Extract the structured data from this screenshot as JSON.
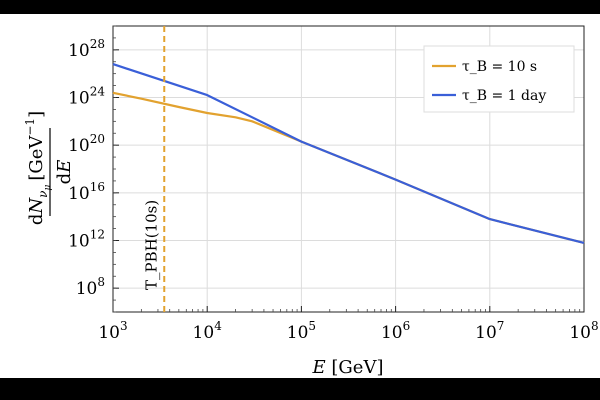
{
  "chart_data": {
    "type": "line",
    "title": "",
    "xlabel": "E [GeV]",
    "ylabel": "dN_{ν_μ}/dE [GeV^{-1}]",
    "xscale": "log",
    "yscale": "log",
    "xlim": [
      1000,
      100000000
    ],
    "ylim": [
      1000000,
      1e+30
    ],
    "xticks": [
      "10^3",
      "10^4",
      "10^5",
      "10^6",
      "10^7",
      "10^8"
    ],
    "yticks": [
      "10^8",
      "10^12",
      "10^16",
      "10^20",
      "10^24",
      "10^28"
    ],
    "grid": true,
    "legend_position": "top-right",
    "series": [
      {
        "name": "τ_B = 10 s",
        "color": "#E2A22F",
        "x": [
          1000,
          2000,
          5000,
          10000,
          20000,
          30000,
          100000,
          1000000,
          10000000,
          100000000
        ],
        "y": [
          2.5e+24,
          8e+23,
          1.6e+23,
          5e+22,
          2.2e+22,
          1e+22,
          2e+20,
          1.3e+17,
          63000000000000.0,
          630000000000.0
        ]
      },
      {
        "name": "τ_B = 1 day",
        "color": "#3A5FD8",
        "x": [
          1000,
          10000,
          100000,
          1000000,
          10000000,
          100000000
        ],
        "y": [
          6.3e+26,
          1.6e+24,
          2e+20,
          1.3e+17,
          63000000000000.0,
          630000000000.0
        ]
      }
    ],
    "annotation": {
      "label": "T_PBH(10s)",
      "x": 3500,
      "color": "#E2A22F"
    }
  }
}
